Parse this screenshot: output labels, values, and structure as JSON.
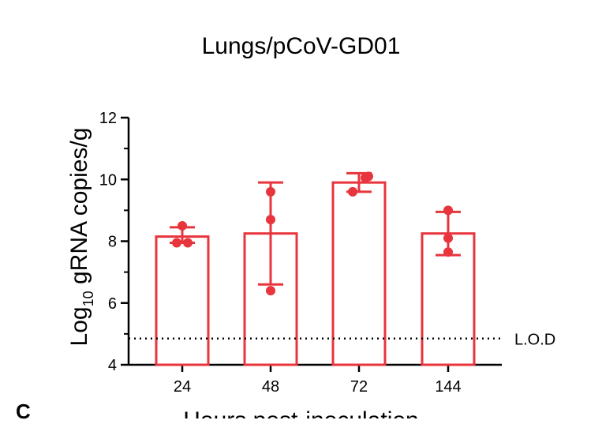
{
  "figure": {
    "panel_letter": "C"
  },
  "chart_data": {
    "type": "bar",
    "title": "Lungs/pCoV-GD01",
    "ylabel_main": "Log",
    "ylabel_sub": "10",
    "ylabel_rest": " gRNA copies/g",
    "xlabel": "Hours post-inoculation",
    "categories": [
      "24",
      "48",
      "72",
      "144"
    ],
    "values": [
      8.15,
      8.25,
      9.9,
      8.25
    ],
    "error_low": [
      7.95,
      6.6,
      9.6,
      7.55
    ],
    "error_high": [
      8.45,
      9.9,
      10.2,
      8.95
    ],
    "points": [
      [
        8.5,
        7.95,
        7.95
      ],
      [
        9.6,
        8.7,
        6.4
      ],
      [
        9.6,
        10.05,
        10.1
      ],
      [
        9.0,
        8.1,
        7.65
      ]
    ],
    "ylim": [
      4,
      12
    ],
    "yticks": [
      4,
      6,
      8,
      10,
      12
    ],
    "lod_value": 4.85,
    "lod_label": "L.O.D",
    "color": "#e8343c"
  }
}
